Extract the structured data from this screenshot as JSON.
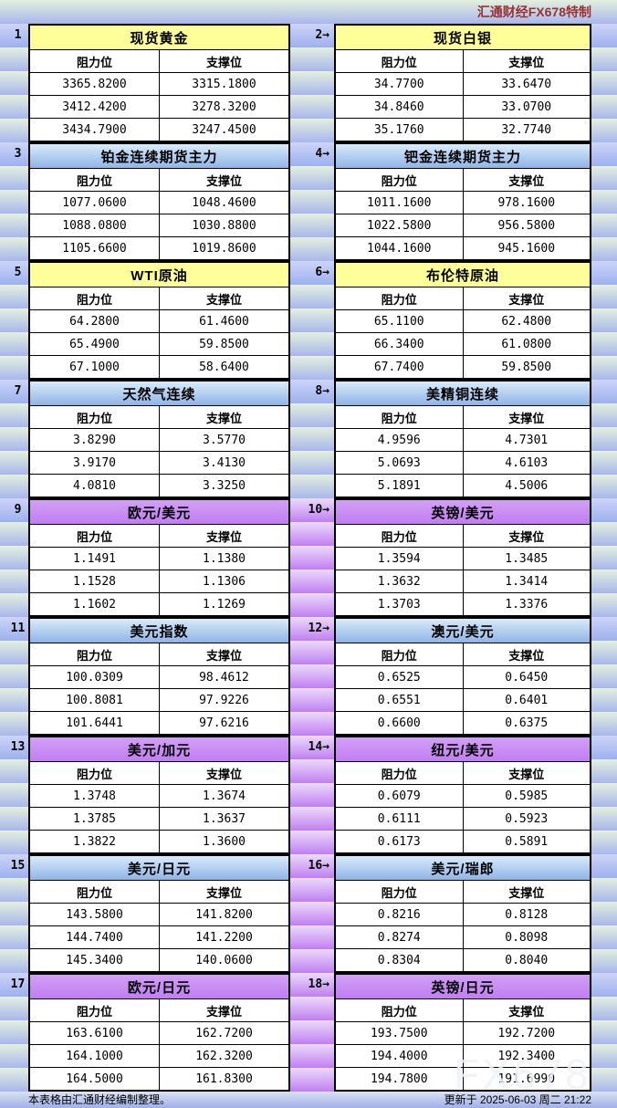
{
  "header": {
    "brand": "汇通财经FX678特制"
  },
  "footer": {
    "left": "本表格由汇通财经编制整理。",
    "right": "更新于 2025-06-03 周二 21:22"
  },
  "watermark": "FX678",
  "colors": {
    "yellow_header": "#ffff99",
    "blue_header_top": "#d9ebfa",
    "blue_header_bottom": "#8fb4e6",
    "purple_header": "#c48ef2",
    "stripe_green_top": "#e3f0de",
    "stripe_blue_bottom": "#a9b6ec",
    "gutter_purple": "#bf7ff0",
    "brand_text": "#993333"
  },
  "chart_data": {
    "type": "table",
    "tables": [
      {
        "num": "1",
        "title": "现货黄金",
        "theme": "yellow",
        "columns": [
          "阻力位",
          "支撑位"
        ],
        "rows": [
          [
            "3365.8200",
            "3315.1800"
          ],
          [
            "3412.4200",
            "3278.3200"
          ],
          [
            "3434.7900",
            "3247.4500"
          ]
        ]
      },
      {
        "num": "2→",
        "title": "现货白银",
        "theme": "yellow",
        "columns": [
          "阻力位",
          "支撑位"
        ],
        "rows": [
          [
            "34.7700",
            "33.6470"
          ],
          [
            "34.8460",
            "33.0700"
          ],
          [
            "35.1760",
            "32.7740"
          ]
        ]
      },
      {
        "num": "3",
        "title": "铂金连续期货主力",
        "theme": "blue",
        "columns": [
          "阻力位",
          "支撑位"
        ],
        "rows": [
          [
            "1077.0600",
            "1048.4600"
          ],
          [
            "1088.0800",
            "1030.8800"
          ],
          [
            "1105.6600",
            "1019.8600"
          ]
        ]
      },
      {
        "num": "4→",
        "title": "钯金连续期货主力",
        "theme": "blue",
        "columns": [
          "阻力位",
          "支撑位"
        ],
        "rows": [
          [
            "1011.1600",
            "978.1600"
          ],
          [
            "1022.5800",
            "956.5800"
          ],
          [
            "1044.1600",
            "945.1600"
          ]
        ]
      },
      {
        "num": "5",
        "title": "WTI原油",
        "theme": "yellow",
        "columns": [
          "阻力位",
          "支撑位"
        ],
        "rows": [
          [
            "64.2800",
            "61.4600"
          ],
          [
            "65.4900",
            "59.8500"
          ],
          [
            "67.1000",
            "58.6400"
          ]
        ]
      },
      {
        "num": "6→",
        "title": "布伦特原油",
        "theme": "yellow",
        "columns": [
          "阻力位",
          "支撑位"
        ],
        "rows": [
          [
            "65.1100",
            "62.4800"
          ],
          [
            "66.3400",
            "61.0800"
          ],
          [
            "67.7400",
            "59.8500"
          ]
        ]
      },
      {
        "num": "7",
        "title": "天然气连续",
        "theme": "blue",
        "columns": [
          "阻力位",
          "支撑位"
        ],
        "rows": [
          [
            "3.8290",
            "3.5770"
          ],
          [
            "3.9170",
            "3.4130"
          ],
          [
            "4.0810",
            "3.3250"
          ]
        ]
      },
      {
        "num": "8→",
        "title": "美精铜连续",
        "theme": "blue",
        "columns": [
          "阻力位",
          "支撑位"
        ],
        "rows": [
          [
            "4.9596",
            "4.7301"
          ],
          [
            "5.0693",
            "4.6103"
          ],
          [
            "5.1891",
            "4.5006"
          ]
        ]
      },
      {
        "num": "9",
        "title": "欧元/美元",
        "theme": "purple",
        "columns": [
          "阻力位",
          "支撑位"
        ],
        "rows": [
          [
            "1.1491",
            "1.1380"
          ],
          [
            "1.1528",
            "1.1306"
          ],
          [
            "1.1602",
            "1.1269"
          ]
        ]
      },
      {
        "num": "10→",
        "title": "英镑/美元",
        "theme": "purple",
        "columns": [
          "阻力位",
          "支撑位"
        ],
        "rows": [
          [
            "1.3594",
            "1.3485"
          ],
          [
            "1.3632",
            "1.3414"
          ],
          [
            "1.3703",
            "1.3376"
          ]
        ]
      },
      {
        "num": "11",
        "title": "美元指数",
        "theme": "blue",
        "columns": [
          "阻力位",
          "支撑位"
        ],
        "rows": [
          [
            "100.0309",
            "98.4612"
          ],
          [
            "100.8081",
            "97.9226"
          ],
          [
            "101.6441",
            "97.6216"
          ]
        ]
      },
      {
        "num": "12→",
        "title": "澳元/美元",
        "theme": "blue",
        "columns": [
          "阻力位",
          "支撑位"
        ],
        "rows": [
          [
            "0.6525",
            "0.6450"
          ],
          [
            "0.6551",
            "0.6401"
          ],
          [
            "0.6600",
            "0.6375"
          ]
        ]
      },
      {
        "num": "13",
        "title": "美元/加元",
        "theme": "purple",
        "columns": [
          "阻力位",
          "支撑位"
        ],
        "rows": [
          [
            "1.3748",
            "1.3674"
          ],
          [
            "1.3785",
            "1.3637"
          ],
          [
            "1.3822",
            "1.3600"
          ]
        ]
      },
      {
        "num": "14→",
        "title": "纽元/美元",
        "theme": "purple",
        "columns": [
          "阻力位",
          "支撑位"
        ],
        "rows": [
          [
            "0.6079",
            "0.5985"
          ],
          [
            "0.6111",
            "0.5923"
          ],
          [
            "0.6173",
            "0.5891"
          ]
        ]
      },
      {
        "num": "15",
        "title": "美元/日元",
        "theme": "blue",
        "columns": [
          "阻力位",
          "支撑位"
        ],
        "rows": [
          [
            "143.5800",
            "141.8200"
          ],
          [
            "144.7400",
            "141.2200"
          ],
          [
            "145.3400",
            "140.0600"
          ]
        ]
      },
      {
        "num": "16→",
        "title": "美元/瑞郎",
        "theme": "blue",
        "columns": [
          "阻力位",
          "支撑位"
        ],
        "rows": [
          [
            "0.8216",
            "0.8128"
          ],
          [
            "0.8274",
            "0.8098"
          ],
          [
            "0.8304",
            "0.8040"
          ]
        ]
      },
      {
        "num": "17",
        "title": "欧元/日元",
        "theme": "purple",
        "columns": [
          "阻力位",
          "支撑位"
        ],
        "rows": [
          [
            "163.6100",
            "162.7200"
          ],
          [
            "164.1000",
            "162.3200"
          ],
          [
            "164.5000",
            "161.8300"
          ]
        ]
      },
      {
        "num": "18→",
        "title": "英镑/日元",
        "theme": "purple",
        "columns": [
          "阻力位",
          "支撑位"
        ],
        "rows": [
          [
            "193.7500",
            "192.7200"
          ],
          [
            "194.4000",
            "192.3400"
          ],
          [
            "194.7800",
            "191.6990"
          ]
        ]
      }
    ]
  }
}
